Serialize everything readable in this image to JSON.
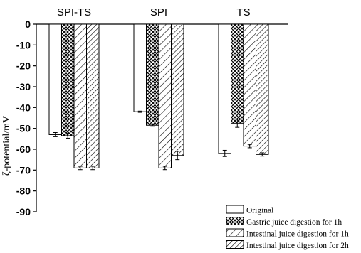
{
  "chart_data": {
    "type": "bar",
    "groups": [
      "SPI-TS",
      "SPI",
      "TS"
    ],
    "ylabel": "ζ-potential/mV",
    "ylim": [
      -90,
      0
    ],
    "yticks": [
      0,
      -10,
      -20,
      -30,
      -40,
      -50,
      -60,
      -70,
      -80,
      -90
    ],
    "ytick_labels": [
      "0",
      "-10",
      "-20",
      "-30",
      "-40",
      "-50",
      "-60",
      "-70",
      "-80",
      "-90"
    ],
    "series": [
      {
        "name": "Original",
        "pattern": "none",
        "values": [
          -53,
          -42,
          -62
        ],
        "errors": [
          1.0,
          0.3,
          1.5
        ]
      },
      {
        "name": "Gastric juice digestion for 1h",
        "pattern": "crosshatch",
        "values": [
          -53.5,
          -48.5,
          -47.5
        ],
        "errors": [
          1.2,
          0.5,
          2.0
        ]
      },
      {
        "name": "Intestinal juice digestion for 1h",
        "pattern": "diagonal",
        "values": [
          -69,
          -69,
          -58.5
        ],
        "errors": [
          0.8,
          0.8,
          0.8
        ]
      },
      {
        "name": "Intestinal juice digestion for 2h",
        "pattern": "diagonal-dense",
        "values": [
          -69,
          -63,
          -62.5
        ],
        "errors": [
          0.8,
          2.0,
          0.8
        ]
      }
    ],
    "legend_position": "bottom-right",
    "grid": false
  },
  "colors": {
    "bar_fill": "#ffffff",
    "bar_stroke": "#000000",
    "pattern_ink": "#000000",
    "axis": "#000000"
  }
}
